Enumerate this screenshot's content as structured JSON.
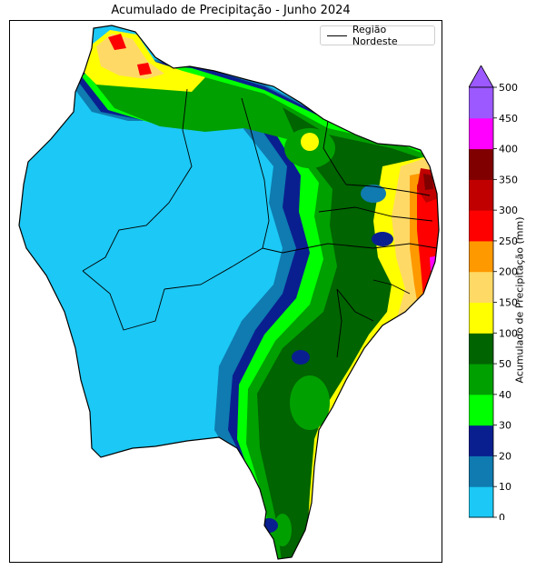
{
  "title": "Acumulado de Precipitação - Junho 2024",
  "legend": {
    "label": "Região Nordeste",
    "line_color": "#000000"
  },
  "colorbar": {
    "label": "Acumulado de Precipitação (mm)",
    "extend": "max",
    "ticks": [
      "0",
      "10",
      "20",
      "30",
      "40",
      "50",
      "100",
      "150",
      "200",
      "250",
      "300",
      "350",
      "400",
      "450",
      "500"
    ],
    "colors": [
      "#1cc8f5",
      "#0f7bb0",
      "#0a1f8f",
      "#00ff00",
      "#00a000",
      "#006400",
      "#ffff00",
      "#ffd966",
      "#ff9900",
      "#ff0000",
      "#c00000",
      "#800000",
      "#ff00ff",
      "#9b59ff"
    ],
    "extend_color": "#9b59ff"
  }
}
